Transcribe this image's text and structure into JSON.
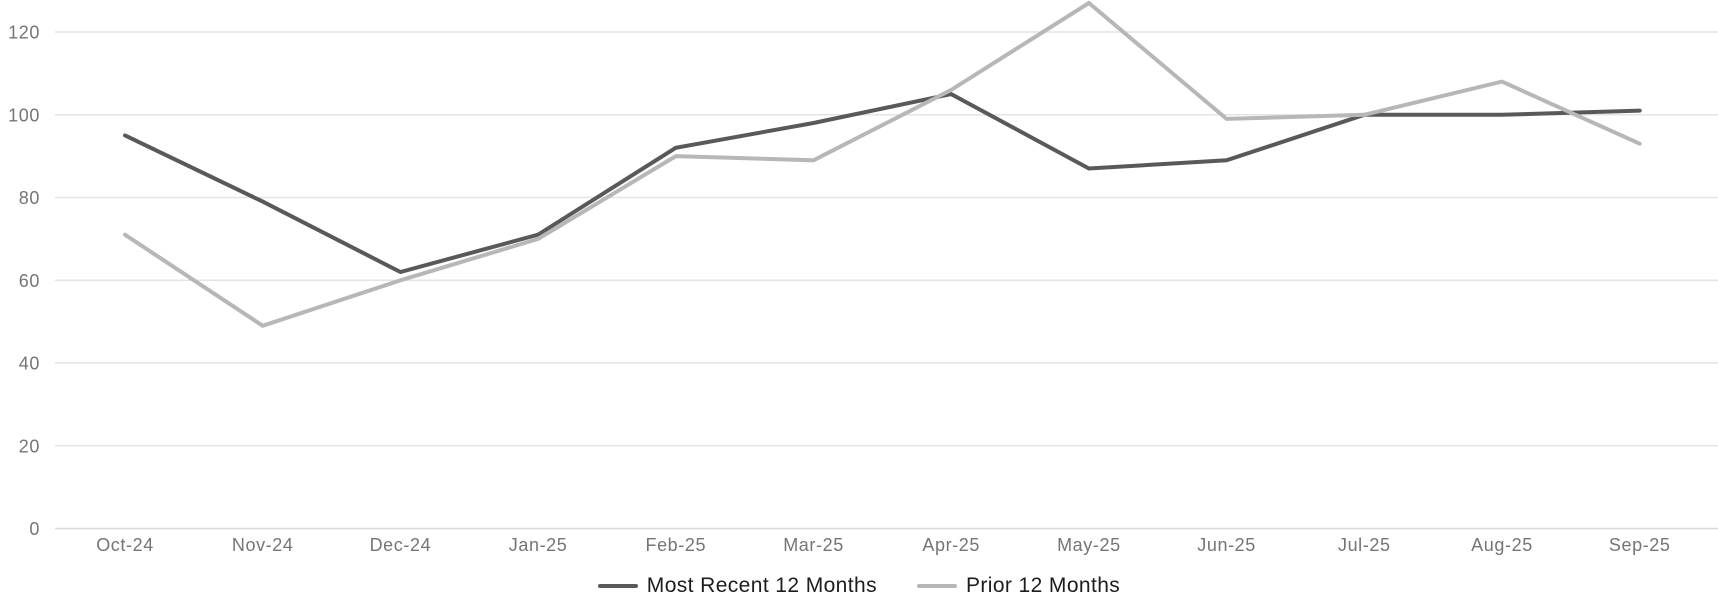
{
  "chart_data": {
    "type": "line",
    "title": "",
    "xlabel": "",
    "ylabel": "",
    "categories": [
      "Oct-24",
      "Nov-24",
      "Dec-24",
      "Jan-25",
      "Feb-25",
      "Mar-25",
      "Apr-25",
      "May-25",
      "Jun-25",
      "Jul-25",
      "Aug-25",
      "Sep-25"
    ],
    "series": [
      {
        "name": "Most Recent 12 Months",
        "color": "#595959",
        "values": [
          95,
          79,
          62,
          71,
          92,
          98,
          105,
          87,
          89,
          100,
          100,
          101
        ]
      },
      {
        "name": "Prior 12 Months",
        "color": "#b7b7b7",
        "values": [
          71,
          49,
          60,
          70,
          90,
          89,
          106,
          127,
          99,
          100,
          108,
          93
        ]
      }
    ],
    "ylim": [
      0,
      120
    ],
    "yticks": [
      0,
      20,
      40,
      60,
      80,
      100,
      120
    ],
    "grid": "horizontal",
    "legend_position": "bottom"
  },
  "legend": {
    "items": [
      {
        "label": "Most Recent 12 Months",
        "color": "#595959"
      },
      {
        "label": "Prior 12 Months",
        "color": "#b7b7b7"
      }
    ]
  },
  "colors": {
    "background": "#ffffff",
    "gridline": "#e4e4e4",
    "zero_line": "#d9d9d9",
    "axis_label": "#757575",
    "legend_text": "#1d1d1d"
  }
}
